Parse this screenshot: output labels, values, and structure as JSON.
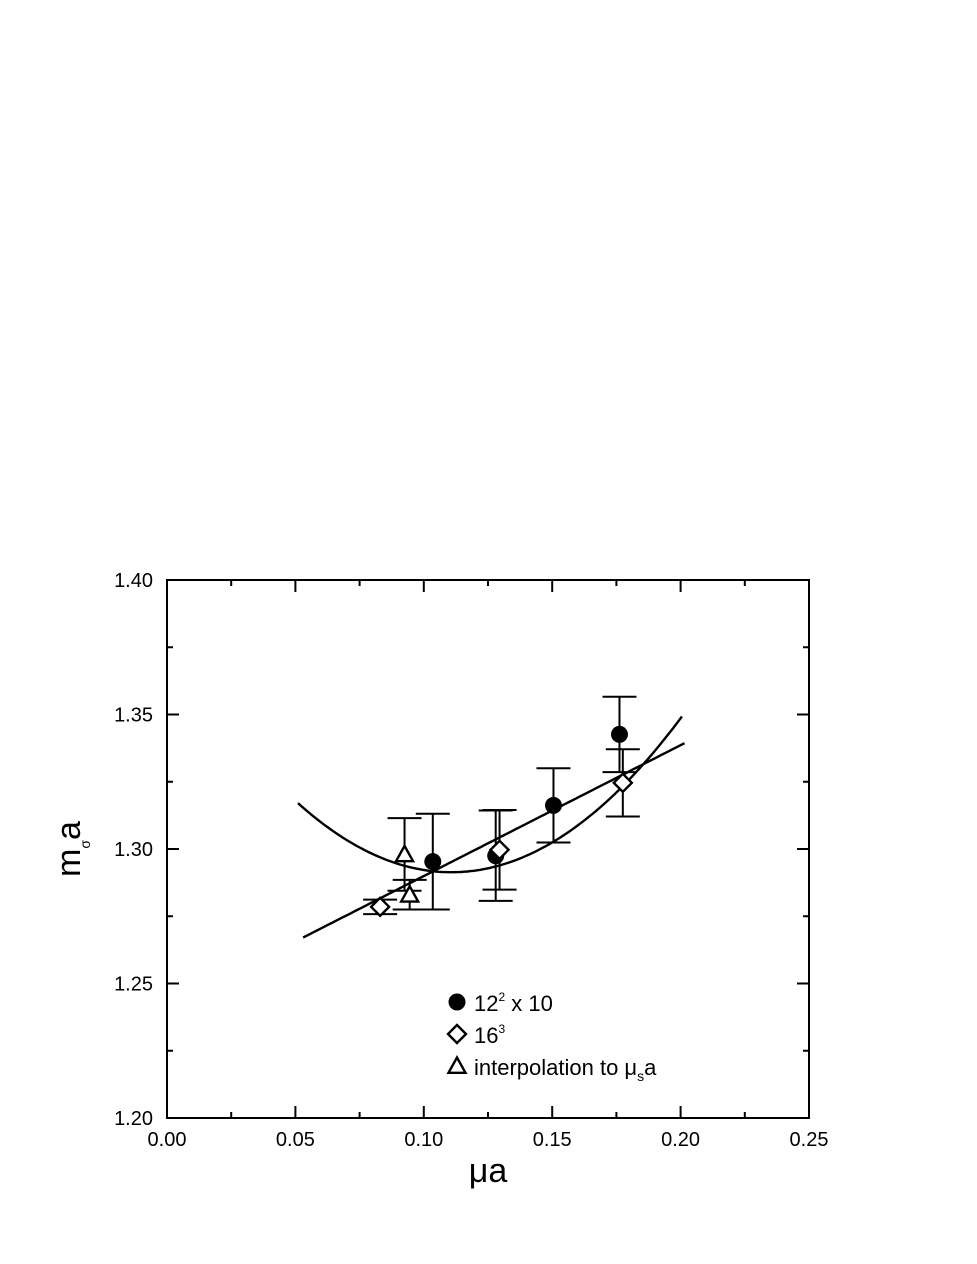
{
  "chart_data": {
    "type": "scatter",
    "xlabel": "μa",
    "ylabel_main": "m",
    "ylabel_sub": "σ",
    "ylabel_tail": "a",
    "xlim": [
      0.0,
      0.25
    ],
    "ylim": [
      1.2,
      1.4
    ],
    "x_ticks": [
      "0.00",
      "0.05",
      "0.10",
      "0.15",
      "0.20",
      "0.25"
    ],
    "y_ticks": [
      "1.20",
      "1.25",
      "1.30",
      "1.35",
      "1.40"
    ],
    "grid": false,
    "legend_position": "bottom-center",
    "series": [
      {
        "marker": "filled-circle",
        "legend_main": "12",
        "legend_sup": "2",
        "legend_tail": " x 10",
        "points": [
          {
            "x": 0.1035,
            "y": 1.2953,
            "err": 0.0178
          },
          {
            "x": 0.128,
            "y": 1.2975,
            "err": 0.0168
          },
          {
            "x": 0.1505,
            "y": 1.3162,
            "err": 0.0138
          },
          {
            "x": 0.1762,
            "y": 1.3426,
            "err": 0.014
          }
        ],
        "fit": {
          "kind": "quadratic",
          "x_range": [
            0.051,
            0.2005
          ],
          "coeffs": [
            1.3796,
            -1.5932,
            7.1917
          ]
        }
      },
      {
        "marker": "open-diamond",
        "legend_main": "16",
        "legend_sup": "3",
        "legend_tail": "",
        "points": [
          {
            "x": 0.083,
            "y": 1.2785,
            "err": 0.0027
          },
          {
            "x": 0.1295,
            "y": 1.2997,
            "err": 0.0148
          },
          {
            "x": 0.1775,
            "y": 1.3246,
            "err": 0.0125
          }
        ],
        "fit": {
          "kind": "linear",
          "x_range": [
            0.053,
            0.2015
          ],
          "coeffs": [
            1.2413,
            0.4865
          ]
        }
      },
      {
        "marker": "open-triangle",
        "legend_main": "interpolation to μ",
        "legend_sub": "s",
        "legend_tail": "a",
        "points": [
          {
            "x": 0.0925,
            "y": 1.298,
            "err": 0.0135
          },
          {
            "x": 0.0945,
            "y": 1.283,
            "err": 0.0055
          }
        ]
      }
    ]
  }
}
